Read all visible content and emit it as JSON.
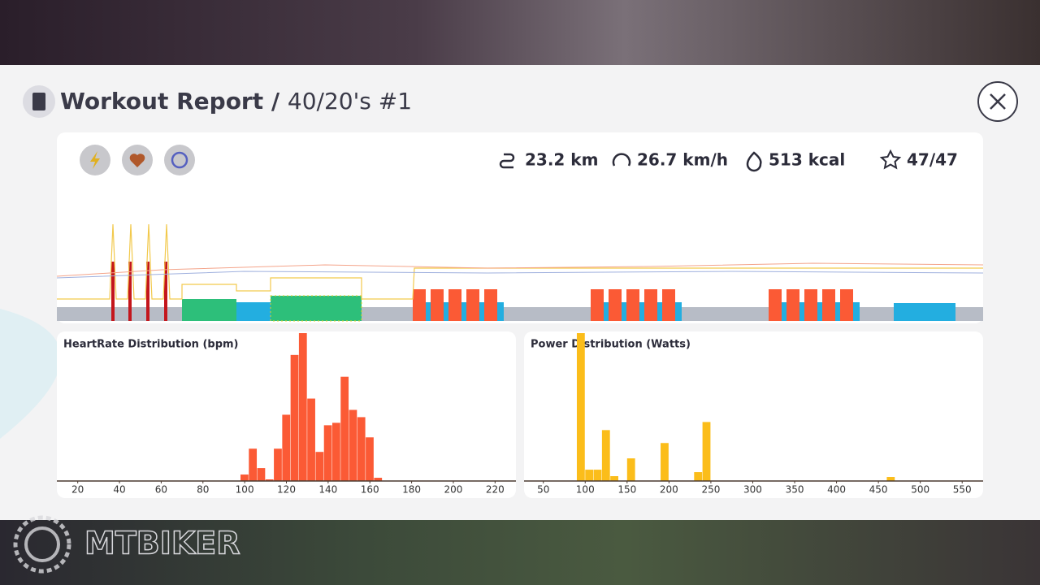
{
  "header": {
    "title": "Workout Report",
    "separator": "/",
    "subtitle": "40/20's #1"
  },
  "stats": {
    "distance": "23.2 km",
    "speed": "26.7 km/h",
    "energy": "513 kcal",
    "score": "47/47"
  },
  "watermark": "MTBIKER",
  "chart_data": [
    {
      "type": "histogram",
      "title": "HeartRate Distribution (bpm)",
      "color": "#fb5a35",
      "bins": [
        98,
        102,
        106,
        110,
        114,
        118,
        122,
        126,
        130,
        134,
        138,
        142,
        146,
        150,
        154,
        158,
        162,
        166,
        170
      ],
      "values": [
        8,
        40,
        16,
        2,
        40,
        82,
        156,
        183,
        102,
        36,
        69,
        72,
        129,
        88,
        79,
        54,
        4,
        0
      ],
      "xlim": [
        10,
        230
      ],
      "xticks": [
        20,
        40,
        60,
        80,
        100,
        120,
        140,
        160,
        180,
        200,
        220
      ],
      "ylim": [
        0,
        185
      ],
      "grid": false
    },
    {
      "type": "histogram",
      "title": "Power Distribution (Watts)",
      "color": "#fbbd1a",
      "bins": [
        90,
        100,
        110,
        120,
        130,
        140,
        150,
        160,
        170,
        180,
        190,
        200,
        210,
        220,
        230,
        240,
        250,
        260,
        270,
        280,
        290,
        300,
        310,
        320,
        330,
        340,
        350,
        360,
        370,
        380,
        390,
        400,
        410,
        420,
        430,
        440,
        450,
        460,
        470
      ],
      "values": [
        183,
        14,
        14,
        63,
        6,
        0,
        28,
        0,
        0,
        0,
        47,
        0,
        0,
        0,
        11,
        73,
        0,
        0,
        0,
        0,
        0,
        0,
        0,
        0,
        0,
        0,
        0,
        0,
        0,
        0,
        0,
        0,
        0,
        0,
        0,
        0,
        0,
        5
      ],
      "xlim": [
        27,
        575
      ],
      "xticks": [
        50,
        100,
        150,
        200,
        250,
        300,
        350,
        400,
        450,
        500,
        550
      ],
      "ylim": [
        0,
        185
      ],
      "grid": false
    }
  ]
}
